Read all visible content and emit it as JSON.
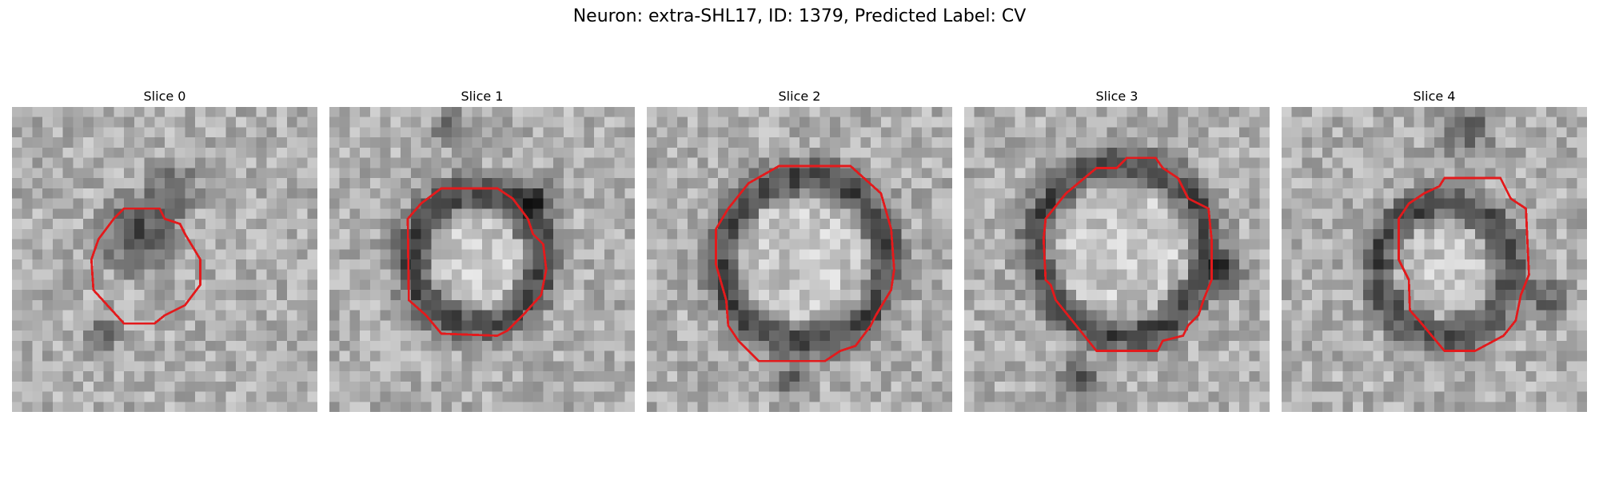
{
  "figure": {
    "title": "Neuron: extra-SHL17, ID: 1379, Predicted Label: CV"
  },
  "panels": [
    {
      "title": "Slice 0"
    },
    {
      "title": "Slice 1"
    },
    {
      "title": "Slice 2"
    },
    {
      "title": "Slice 3"
    },
    {
      "title": "Slice 4"
    }
  ],
  "colors": {
    "contour": "#e31a1c",
    "background": "#ffffff"
  }
}
